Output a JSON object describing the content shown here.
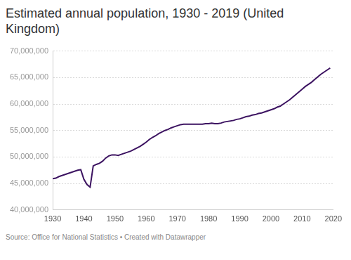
{
  "chart_data": {
    "type": "line",
    "title": "Estimated annual population, 1930 - 2019 (United Kingdom)",
    "source": "Source: Office for National Statistics • Created with Datawrapper",
    "color": "#3c1361",
    "grid": true,
    "x": [
      1930,
      1931,
      1932,
      1933,
      1934,
      1935,
      1936,
      1937,
      1938,
      1939,
      1940,
      1941,
      1942,
      1943,
      1944,
      1945,
      1946,
      1947,
      1948,
      1949,
      1950,
      1951,
      1952,
      1953,
      1954,
      1955,
      1956,
      1957,
      1958,
      1959,
      1960,
      1961,
      1962,
      1963,
      1964,
      1965,
      1966,
      1967,
      1968,
      1969,
      1970,
      1971,
      1972,
      1973,
      1974,
      1975,
      1976,
      1977,
      1978,
      1979,
      1980,
      1981,
      1982,
      1983,
      1984,
      1985,
      1986,
      1987,
      1988,
      1989,
      1990,
      1991,
      1992,
      1993,
      1994,
      1995,
      1996,
      1997,
      1998,
      1999,
      2000,
      2001,
      2002,
      2003,
      2004,
      2005,
      2006,
      2007,
      2008,
      2009,
      2010,
      2011,
      2012,
      2013,
      2014,
      2015,
      2016,
      2017,
      2018,
      2019
    ],
    "values": [
      45900000,
      46000000,
      46300000,
      46500000,
      46700000,
      46900000,
      47100000,
      47300000,
      47500000,
      47600000,
      45800000,
      44800000,
      44300000,
      48300000,
      48600000,
      48800000,
      49200000,
      49800000,
      50200000,
      50400000,
      50400000,
      50300000,
      50500000,
      50700000,
      50900000,
      51100000,
      51400000,
      51700000,
      52000000,
      52400000,
      52800000,
      53300000,
      53700000,
      54000000,
      54400000,
      54700000,
      55000000,
      55200000,
      55500000,
      55700000,
      55900000,
      56100000,
      56200000,
      56200000,
      56200000,
      56200000,
      56200000,
      56200000,
      56200000,
      56300000,
      56300000,
      56400000,
      56300000,
      56300000,
      56400000,
      56600000,
      56700000,
      56800000,
      56900000,
      57100000,
      57200000,
      57400000,
      57600000,
      57700000,
      57900000,
      58000000,
      58200000,
      58300000,
      58500000,
      58700000,
      58900000,
      59100000,
      59400000,
      59600000,
      60000000,
      60400000,
      60800000,
      61300000,
      61800000,
      62300000,
      62800000,
      63300000,
      63700000,
      64100000,
      64600000,
      65100000,
      65600000,
      66000000,
      66400000,
      66800000
    ],
    "xlim": [
      1930,
      2020
    ],
    "xticks": [
      1930,
      1940,
      1950,
      1960,
      1970,
      1980,
      1990,
      2000,
      2010,
      2020
    ],
    "ylim": [
      40000000,
      70000000
    ],
    "yticks": [
      {
        "value": 40000000,
        "label": "40,000,000"
      },
      {
        "value": 45000000,
        "label": "45,000,000"
      },
      {
        "value": 50000000,
        "label": "50,000,000"
      },
      {
        "value": 55000000,
        "label": "55,000,000"
      },
      {
        "value": 60000000,
        "label": "60,000,000"
      },
      {
        "value": 65000000,
        "label": "65,000,000"
      },
      {
        "value": 70000000,
        "label": "70,000,000"
      }
    ]
  }
}
